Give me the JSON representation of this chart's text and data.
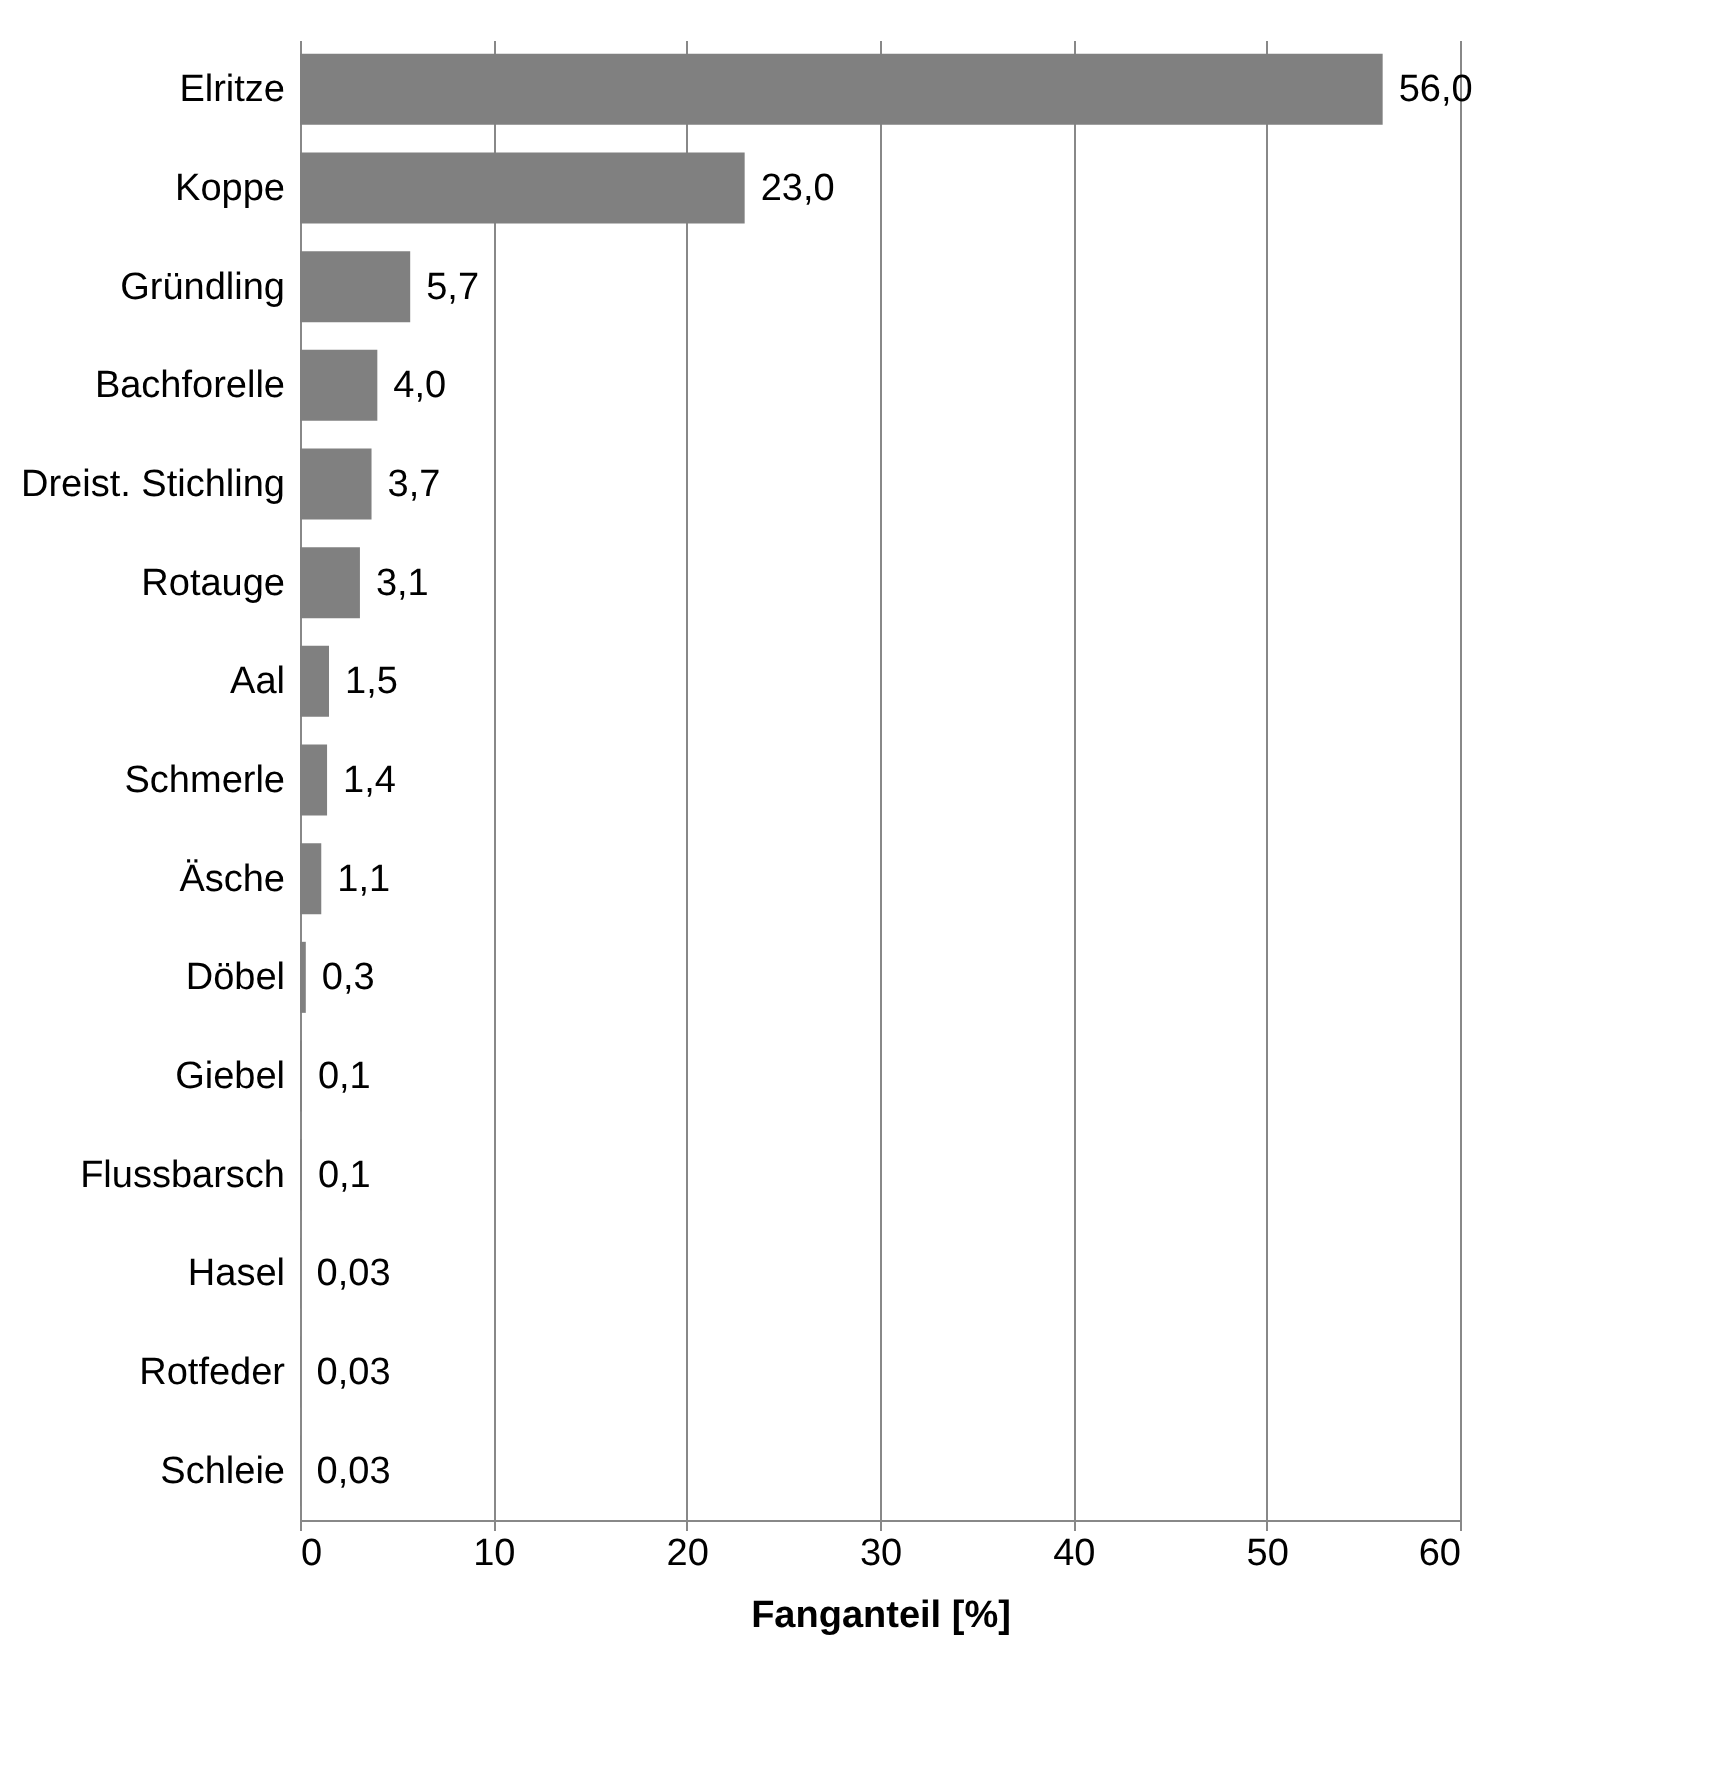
{
  "chart_data": {
    "type": "bar",
    "orientation": "horizontal",
    "xlabel": "Fanganteil [%]",
    "categories": [
      "Elritze",
      "Koppe",
      "Gründling",
      "Bachforelle",
      "Dreist. Stichling",
      "Rotauge",
      "Aal",
      "Schmerle",
      "Äsche",
      "Döbel",
      "Giebel",
      "Flussbarsch",
      "Hasel",
      "Rotfeder",
      "Schleie"
    ],
    "values": [
      56.0,
      23.0,
      5.7,
      4.0,
      3.7,
      3.1,
      1.5,
      1.4,
      1.1,
      0.3,
      0.1,
      0.1,
      0.03,
      0.03,
      0.03
    ],
    "value_labels": [
      "56,0",
      "23,0",
      "5,7",
      "4,0",
      "3,7",
      "3,1",
      "1,5",
      "1,4",
      "1,1",
      "0,3",
      "0,1",
      "0,1",
      "0,03",
      "0,03",
      "0,03"
    ],
    "color": "#808080",
    "xlim": [
      0,
      60
    ],
    "xticks": [
      0,
      10,
      20,
      30,
      40,
      50,
      60
    ],
    "grid": "x"
  }
}
